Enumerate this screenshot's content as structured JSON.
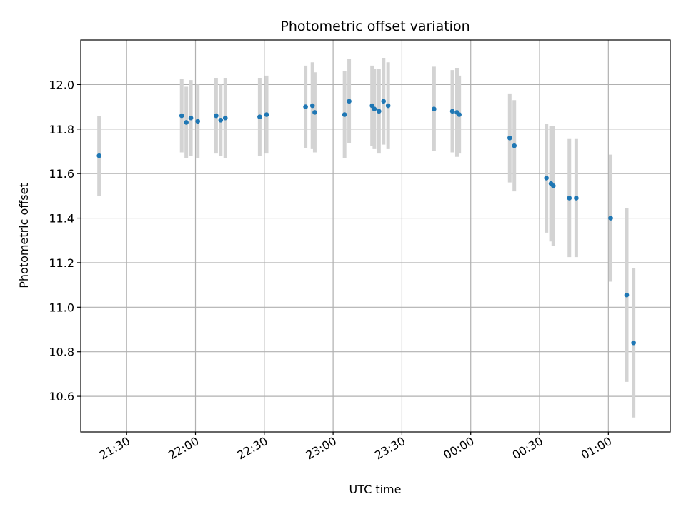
{
  "chart_data": {
    "type": "scatter",
    "title": "Photometric offset variation",
    "xlabel": "UTC time",
    "ylabel": "Photometric offset",
    "grid": true,
    "xlim_minutes_after_midnight": [
      -170,
      87
    ],
    "ylim": [
      10.44,
      12.2
    ],
    "x_ticks": [
      {
        "label": "21:30",
        "time": "21:30"
      },
      {
        "label": "22:00",
        "time": "22:00"
      },
      {
        "label": "22:30",
        "time": "22:30"
      },
      {
        "label": "23:00",
        "time": "23:00"
      },
      {
        "label": "23:30",
        "time": "23:30"
      },
      {
        "label": "00:00",
        "time": "00:00"
      },
      {
        "label": "00:30",
        "time": "00:30"
      },
      {
        "label": "01:00",
        "time": "01:00"
      }
    ],
    "y_ticks": [
      "10.6",
      "10.8",
      "11.0",
      "11.2",
      "11.4",
      "11.6",
      "11.8",
      "12.0"
    ],
    "marker_color": "#1f77b4",
    "errorbar_color": "#d3d3d3",
    "points": [
      {
        "time": "21:18",
        "y": 11.68,
        "err": 0.18
      },
      {
        "time": "21:54",
        "y": 11.86,
        "err": 0.165
      },
      {
        "time": "21:56",
        "y": 11.83,
        "err": 0.16
      },
      {
        "time": "21:58",
        "y": 11.85,
        "err": 0.17
      },
      {
        "time": "22:01",
        "y": 11.835,
        "err": 0.165
      },
      {
        "time": "22:09",
        "y": 11.86,
        "err": 0.17
      },
      {
        "time": "22:11",
        "y": 11.84,
        "err": 0.16
      },
      {
        "time": "22:13",
        "y": 11.85,
        "err": 0.18
      },
      {
        "time": "22:28",
        "y": 11.855,
        "err": 0.175
      },
      {
        "time": "22:31",
        "y": 11.865,
        "err": 0.175
      },
      {
        "time": "22:48",
        "y": 11.9,
        "err": 0.185
      },
      {
        "time": "22:51",
        "y": 11.905,
        "err": 0.195
      },
      {
        "time": "22:52",
        "y": 11.875,
        "err": 0.18
      },
      {
        "time": "23:05",
        "y": 11.865,
        "err": 0.195
      },
      {
        "time": "23:07",
        "y": 11.925,
        "err": 0.19
      },
      {
        "time": "23:17",
        "y": 11.905,
        "err": 0.18
      },
      {
        "time": "23:18",
        "y": 11.89,
        "err": 0.18
      },
      {
        "time": "23:20",
        "y": 11.88,
        "err": 0.19
      },
      {
        "time": "23:22",
        "y": 11.925,
        "err": 0.195
      },
      {
        "time": "23:24",
        "y": 11.905,
        "err": 0.195
      },
      {
        "time": "23:44",
        "y": 11.89,
        "err": 0.19
      },
      {
        "time": "23:52",
        "y": 11.88,
        "err": 0.185
      },
      {
        "time": "23:54",
        "y": 11.875,
        "err": 0.2
      },
      {
        "time": "23:55",
        "y": 11.865,
        "err": 0.175
      },
      {
        "time": "00:17",
        "y": 11.76,
        "err": 0.2
      },
      {
        "time": "00:19",
        "y": 11.725,
        "err": 0.205
      },
      {
        "time": "00:33",
        "y": 11.58,
        "err": 0.245
      },
      {
        "time": "00:35",
        "y": 11.555,
        "err": 0.26
      },
      {
        "time": "00:36",
        "y": 11.545,
        "err": 0.27
      },
      {
        "time": "00:43",
        "y": 11.49,
        "err": 0.265
      },
      {
        "time": "00:46",
        "y": 11.49,
        "err": 0.265
      },
      {
        "time": "01:01",
        "y": 11.4,
        "err": 0.285
      },
      {
        "time": "01:08",
        "y": 11.055,
        "err": 0.39
      },
      {
        "time": "01:11",
        "y": 10.84,
        "err": 0.335
      }
    ]
  }
}
